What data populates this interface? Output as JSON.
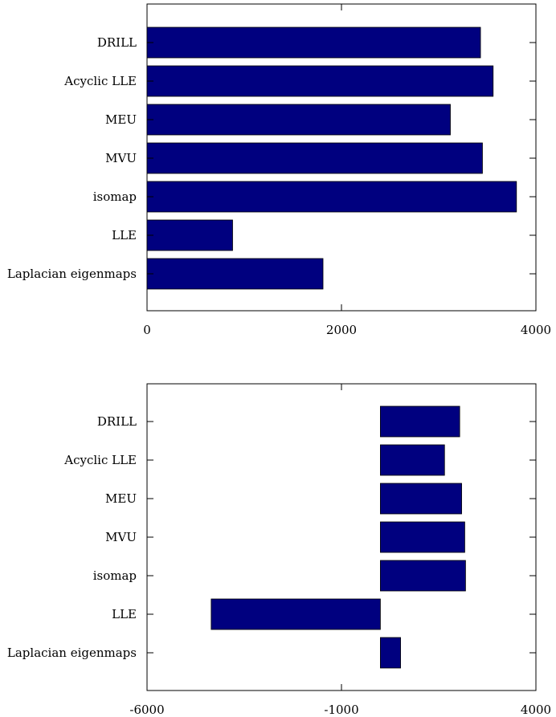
{
  "colors": {
    "bar": "#00007f"
  },
  "chart_data": [
    {
      "type": "bar",
      "orientation": "horizontal",
      "categories": [
        "DRILL",
        "Acyclic LLE",
        "MEU",
        "MVU",
        "isomap",
        "LLE",
        "Laplacian eigenmaps"
      ],
      "values": [
        3430,
        3560,
        3120,
        3450,
        3800,
        880,
        1810
      ],
      "xlim": [
        0,
        4000
      ],
      "xticks": [
        0,
        2000,
        4000
      ],
      "xtick_labels": [
        "0",
        "2000",
        "4000"
      ],
      "grid": false
    },
    {
      "type": "bar",
      "orientation": "horizontal",
      "categories": [
        "DRILL",
        "Acyclic LLE",
        "MEU",
        "MVU",
        "isomap",
        "LLE",
        "Laplacian eigenmaps"
      ],
      "values": [
        2040,
        1650,
        2090,
        2170,
        2190,
        -4350,
        520
      ],
      "xlim": [
        -6000,
        4000
      ],
      "xticks": [
        -6000,
        -1000,
        4000
      ],
      "xtick_labels": [
        "-6000",
        "-1000",
        "4000"
      ],
      "grid": false
    }
  ]
}
